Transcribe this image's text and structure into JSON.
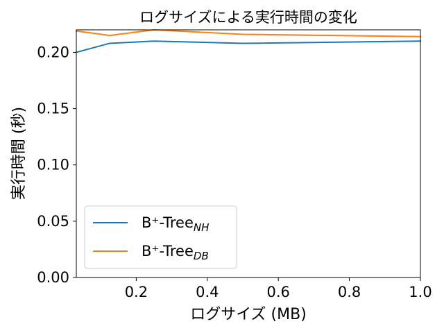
{
  "chart_data": {
    "type": "line",
    "title": "ログサイズによる実行時間の変化",
    "xlabel": "ログサイズ (MB)",
    "ylabel": "実行時間 (秒)",
    "xlim": [
      0.03125,
      1.0
    ],
    "ylim": [
      0.0,
      0.22
    ],
    "xticks": [
      0.2,
      0.4,
      0.6,
      0.8,
      1.0
    ],
    "xtick_labels": [
      "0.2",
      "0.4",
      "0.6",
      "0.8",
      "1.0"
    ],
    "yticks": [
      0.0,
      0.05,
      0.1,
      0.15,
      0.2
    ],
    "ytick_labels": [
      "0.00",
      "0.05",
      "0.10",
      "0.15",
      "0.20"
    ],
    "grid": false,
    "legend_position": "lower-left",
    "x": [
      0.03125,
      0.125,
      0.25,
      0.5,
      1.0
    ],
    "series": [
      {
        "name": "B⁺-Tree",
        "subscript": "NH",
        "color": "#1f77b4",
        "values": [
          0.2,
          0.208,
          0.21,
          0.208,
          0.21
        ]
      },
      {
        "name": "B⁺-Tree",
        "subscript": "DB",
        "color": "#ff7f0e",
        "values": [
          0.219,
          0.215,
          0.22,
          0.216,
          0.214
        ]
      }
    ]
  }
}
